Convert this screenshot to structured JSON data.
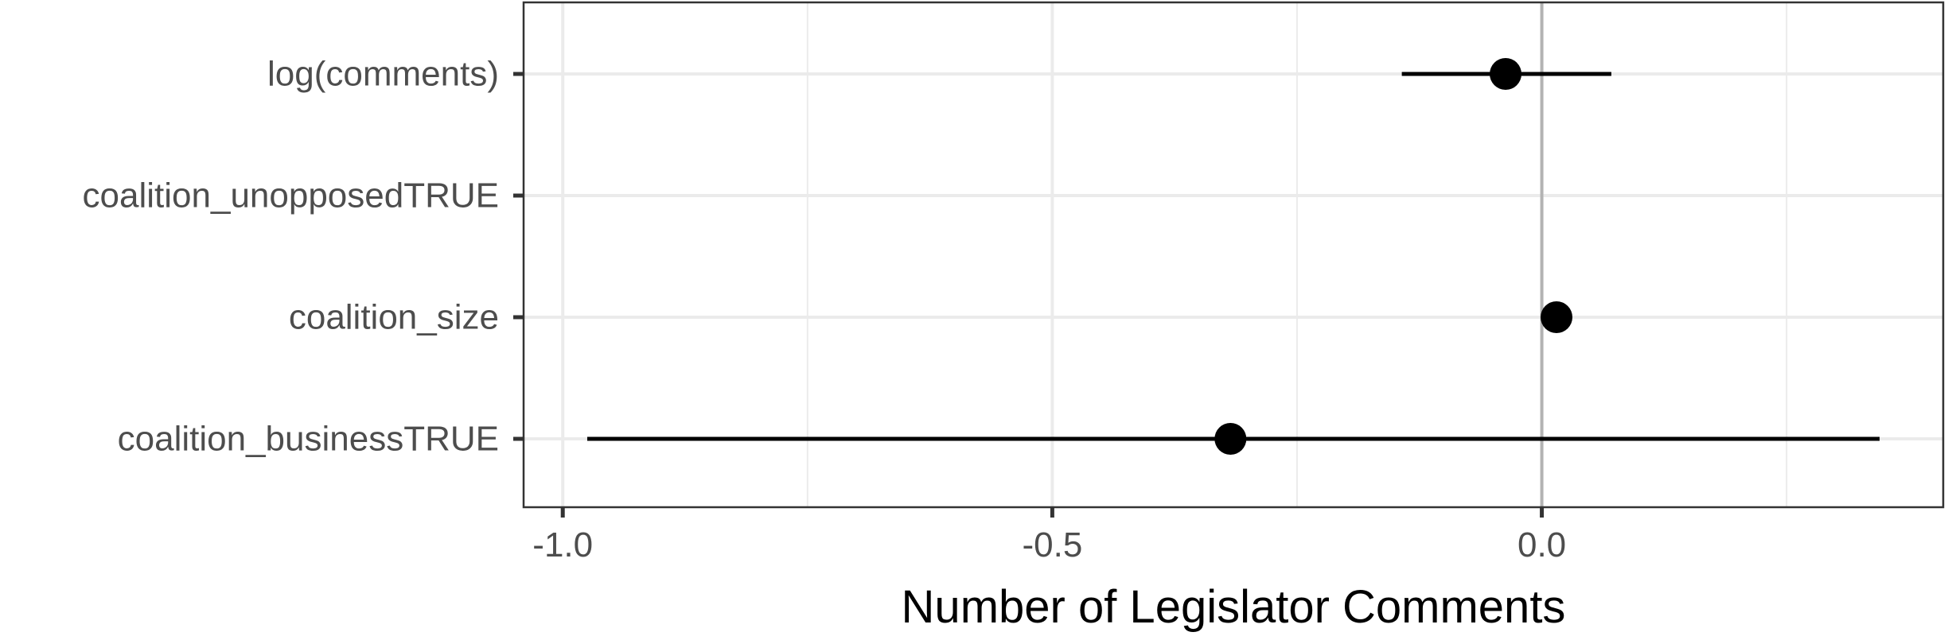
{
  "chart_data": {
    "type": "scatter",
    "title": "",
    "xlabel": "Number of Legislator Comments",
    "ylabel": "",
    "xlim": [
      -1.04,
      0.41
    ],
    "x_ticks": [
      -1.0,
      -0.5,
      0.0
    ],
    "x_tick_labels": [
      "-1.0",
      "-0.5",
      "0.0"
    ],
    "grid": true,
    "reference_line_x": 0.0,
    "categories": [
      "log(comments)",
      "coalition_unopposedTRUE",
      "coalition_size",
      "coalition_businessTRUE"
    ],
    "estimates": [
      {
        "term": "log(comments)",
        "estimate": -0.037,
        "low": -0.143,
        "high": 0.071
      },
      {
        "term": "coalition_unopposedTRUE",
        "estimate": null,
        "low": null,
        "high": null
      },
      {
        "term": "coalition_size",
        "estimate": 0.015,
        "low": null,
        "high": null
      },
      {
        "term": "coalition_businessTRUE",
        "estimate": -0.318,
        "low": -0.975,
        "high": 0.345
      }
    ],
    "colors": {
      "point": "#000000",
      "grid": "#ebebeb",
      "zero_line": "#b3b3b3",
      "tick_text": "#4d4d4d",
      "panel_border": "#333333"
    }
  }
}
